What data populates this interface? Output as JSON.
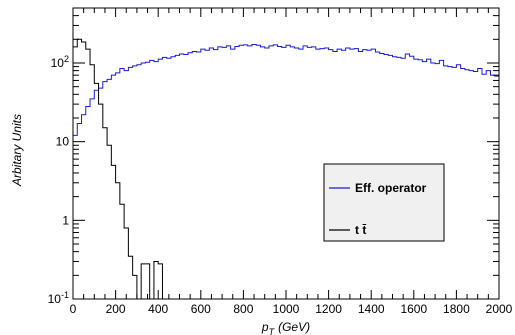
{
  "chart_data": {
    "type": "line",
    "step_histogram": true,
    "xlabel_main": "p",
    "xlabel_sub": "T",
    "xlabel_unit": "(GeV)",
    "ylabel": "Arbitary Units",
    "xlim": [
      0,
      2000
    ],
    "ylim": [
      0.1,
      500
    ],
    "yscale": "log",
    "grid": false,
    "legend_position": "center-right",
    "x_ticks": [
      0,
      200,
      400,
      600,
      800,
      1000,
      1200,
      1400,
      1600,
      1800,
      2000
    ],
    "x_tick_labels": [
      "0",
      "200",
      "400",
      "600",
      "800",
      "1000",
      "1200",
      "1400",
      "1600",
      "1800",
      "2000"
    ],
    "y_ticks": [
      0.1,
      1,
      10,
      100
    ],
    "y_tick_labels": [
      {
        "base": "10",
        "exp": "-1"
      },
      {
        "base": "1",
        "exp": ""
      },
      {
        "base": "10",
        "exp": ""
      },
      {
        "base": "10",
        "exp": "2"
      }
    ],
    "bin_width": 20,
    "series": [
      {
        "name": "Eff. operator",
        "color": "#1a1ad6",
        "values": [
          12,
          17,
          22,
          28,
          35,
          45,
          48,
          58,
          62,
          70,
          75,
          85,
          80,
          88,
          92,
          95,
          100,
          102,
          108,
          104,
          112,
          118,
          115,
          120,
          125,
          130,
          128,
          135,
          140,
          138,
          150,
          145,
          155,
          148,
          160,
          158,
          165,
          150,
          162,
          168,
          170,
          165,
          172,
          168,
          160,
          155,
          165,
          170,
          162,
          158,
          168,
          160,
          155,
          150,
          165,
          158,
          160,
          150,
          152,
          155,
          148,
          140,
          150,
          145,
          155,
          150,
          152,
          140,
          148,
          145,
          150,
          138,
          132,
          128,
          125,
          120,
          118,
          115,
          130,
          122,
          112,
          110,
          104,
          112,
          100,
          98,
          108,
          92,
          90,
          88,
          95,
          85,
          82,
          80,
          78,
          85,
          72,
          80,
          70,
          68
        ]
      },
      {
        "name": "t t̄",
        "color": "#000000",
        "values": [
          160,
          200,
          185,
          150,
          95,
          55,
          30,
          15,
          9,
          5,
          3,
          1.6,
          0.8,
          0.35,
          0.2,
          0.1,
          0.28,
          0.28,
          0.1,
          0.3,
          0.28,
          0.1,
          0.1,
          0.1,
          0.1,
          0.1,
          0.1,
          0.1,
          0.1,
          0.1,
          0.1,
          0.1,
          0.1,
          0.1,
          0.1,
          0.1,
          0.1,
          0.1,
          0.1,
          0.1,
          0.1,
          0.1,
          0.1,
          0.1,
          0.1,
          0.1,
          0.1,
          0.1,
          0.1,
          0.1,
          0.1,
          0.1,
          0.1,
          0.1,
          0.1,
          0.1,
          0.1,
          0.1,
          0.1,
          0.1,
          0.1,
          0.1,
          0.1,
          0.1,
          0.1,
          0.1,
          0.1,
          0.1,
          0.1,
          0.1,
          0.1,
          0.1,
          0.1,
          0.1,
          0.1,
          0.1,
          0.1,
          0.1,
          0.1,
          0.1,
          0.1,
          0.1,
          0.1,
          0.1,
          0.1,
          0.1,
          0.1,
          0.1,
          0.1,
          0.1,
          0.1,
          0.1,
          0.1,
          0.1,
          0.1,
          0.1,
          0.1,
          0.1,
          0.1,
          0.1
        ]
      }
    ]
  }
}
